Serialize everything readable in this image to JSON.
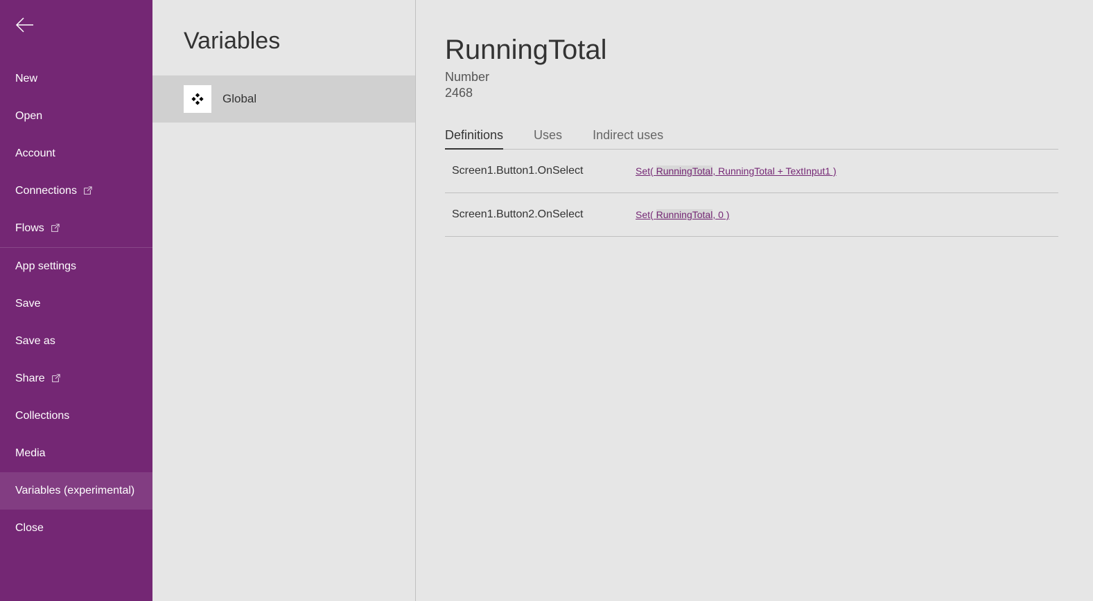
{
  "colors": {
    "sidebar_bg": "#742774",
    "main_bg": "#e6e6e6",
    "scope_active_bg": "#d0d0d0",
    "link": "#742774",
    "highlight_bg": "#d8d8d8"
  },
  "sidebar": {
    "items": [
      {
        "label": "New",
        "external": false
      },
      {
        "label": "Open",
        "external": false
      },
      {
        "label": "Account",
        "external": false
      },
      {
        "label": "Connections",
        "external": true
      },
      {
        "label": "Flows",
        "external": true
      },
      {
        "label": "App settings",
        "external": false,
        "section_start": true
      },
      {
        "label": "Save",
        "external": false
      },
      {
        "label": "Save as",
        "external": false
      },
      {
        "label": "Share",
        "external": true
      },
      {
        "label": "Collections",
        "external": false
      },
      {
        "label": "Media",
        "external": false
      },
      {
        "label": "Variables (experimental)",
        "external": false,
        "active": true
      },
      {
        "label": "Close",
        "external": false
      }
    ]
  },
  "middle": {
    "title": "Variables",
    "scopes": [
      {
        "label": "Global",
        "active": true
      }
    ]
  },
  "main": {
    "variable_name": "RunningTotal",
    "variable_type": "Number",
    "variable_value": "2468",
    "tabs": [
      {
        "label": "Definitions",
        "active": true
      },
      {
        "label": "Uses",
        "active": false
      },
      {
        "label": "Indirect uses",
        "active": false
      }
    ],
    "definitions": [
      {
        "location": "Screen1.Button1.OnSelect",
        "formula_pre": "Set( ",
        "formula_hl": "RunningTotal",
        "formula_post": ", RunningTotal + TextInput1 )"
      },
      {
        "location": "Screen1.Button2.OnSelect",
        "formula_pre": "Set( ",
        "formula_hl": "RunningTotal",
        "formula_post": ", 0 )"
      }
    ]
  }
}
